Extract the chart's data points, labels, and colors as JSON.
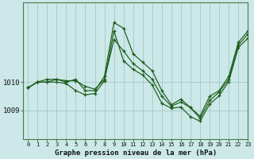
{
  "title": "Graphe pression niveau de la mer (hPa)",
  "bg_color": "#cce8e8",
  "grid_color": "#aacccc",
  "line_color": "#1a5c1a",
  "xlim": [
    -0.5,
    23
  ],
  "ylim": [
    1008.0,
    1012.8
  ],
  "yticks": [
    1009,
    1010
  ],
  "xticks": [
    0,
    1,
    2,
    3,
    4,
    5,
    6,
    7,
    8,
    9,
    10,
    11,
    12,
    13,
    14,
    15,
    16,
    17,
    18,
    19,
    20,
    21,
    22,
    23
  ],
  "series": [
    [
      1009.8,
      1010.0,
      1010.0,
      1010.1,
      1010.0,
      1010.1,
      1009.7,
      1009.7,
      1010.2,
      1012.1,
      1011.9,
      1011.0,
      1010.7,
      1010.4,
      1009.7,
      1009.2,
      1009.4,
      1009.1,
      1008.8,
      1009.5,
      1009.7,
      1010.2,
      1011.4,
      1011.8
    ],
    [
      1009.8,
      1010.0,
      1010.1,
      1010.1,
      1010.05,
      1010.05,
      1009.85,
      1009.75,
      1010.1,
      1011.5,
      1011.1,
      1010.65,
      1010.4,
      1010.1,
      1009.5,
      1009.15,
      1009.3,
      1009.1,
      1008.72,
      1009.35,
      1009.65,
      1010.1,
      1011.3,
      1011.7
    ],
    [
      1009.8,
      1010.0,
      1010.0,
      1010.0,
      1009.95,
      1009.7,
      1009.55,
      1009.6,
      1010.05,
      1011.8,
      1010.75,
      1010.45,
      1010.25,
      1009.9,
      1009.25,
      1009.08,
      1009.12,
      1008.78,
      1008.62,
      1009.22,
      1009.52,
      1010.02,
      1011.22,
      1011.55
    ]
  ]
}
